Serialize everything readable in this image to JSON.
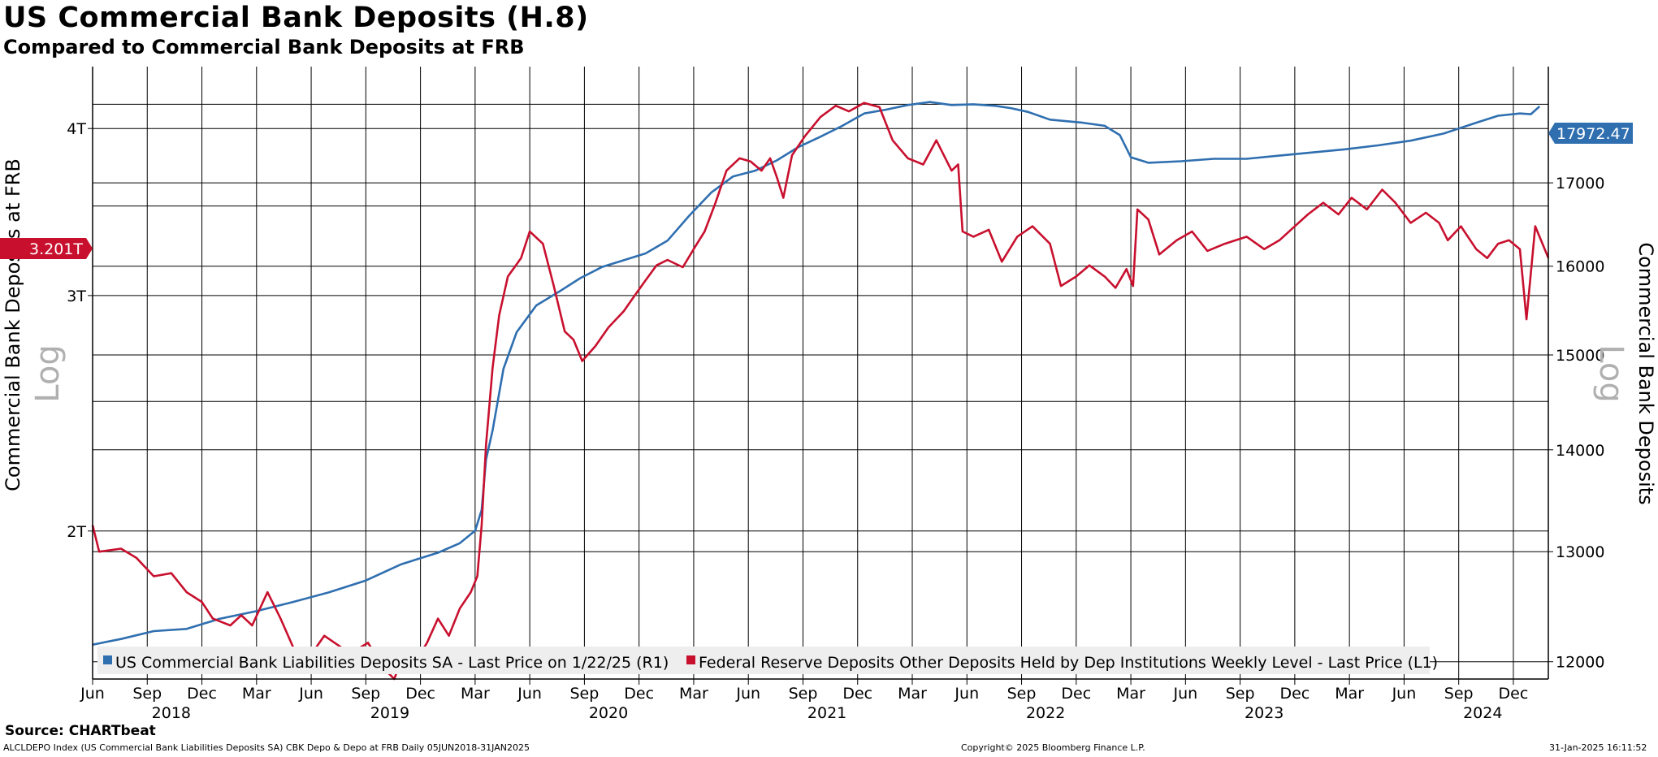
{
  "header": {
    "title": "US Commercial Bank Deposits (H.8)",
    "subtitle": "Compared to Commercial Bank Deposits at FRB"
  },
  "footer": {
    "source": "Source: CHARTbeat",
    "left": "ALCLDEPO Index (US Commercial Bank Liabilities Deposits SA) CBK Depo & Depo at FRB  Daily 05JUN2018-31JAN2025",
    "center": "Copyright© 2025 Bloomberg Finance L.P.",
    "right": "31-Jan-2025 16:11:52"
  },
  "colors": {
    "blue": "#2f6fb0",
    "red": "#c8102e",
    "grid": "#000000",
    "legend_bg": "#eeeeee",
    "watermark": "#b0b0b0"
  },
  "chart_data": {
    "type": "line",
    "x_axis": {
      "month_ticks": [
        "Jun",
        "Sep",
        "Dec",
        "Mar",
        "Jun",
        "Sep",
        "Dec",
        "Mar",
        "Jun",
        "Sep",
        "Dec",
        "Mar",
        "Jun",
        "Sep",
        "Dec",
        "Mar",
        "Jun",
        "Sep",
        "Dec",
        "Mar",
        "Jun",
        "Sep",
        "Dec",
        "Mar",
        "Jun",
        "Sep",
        "Dec"
      ],
      "tick_dates": [
        2018.42,
        2018.67,
        2018.92,
        2019.17,
        2019.42,
        2019.67,
        2019.92,
        2020.17,
        2020.42,
        2020.67,
        2020.92,
        2021.17,
        2021.42,
        2021.67,
        2021.92,
        2022.17,
        2022.42,
        2022.67,
        2022.92,
        2023.17,
        2023.42,
        2023.67,
        2023.92,
        2024.17,
        2024.42,
        2024.67,
        2024.92
      ],
      "year_labels": [
        "2018",
        "2019",
        "2020",
        "2021",
        "2022",
        "2023",
        "2024"
      ],
      "year_positions": [
        2018.78,
        2019.78,
        2020.78,
        2021.78,
        2022.78,
        2023.78,
        2024.78
      ],
      "range": [
        2018.42,
        2025.08
      ]
    },
    "left_axis": {
      "label": "Commercial Bank Deposits at FRB",
      "scale": "Log",
      "ticks": [
        "2T",
        "3T",
        "4T"
      ],
      "tick_values": [
        2.0,
        3.0,
        4.0
      ],
      "extra_grid_values": [
        2.5,
        3.5
      ],
      "range": [
        1.55,
        4.45
      ],
      "last_value_label": "3.201T",
      "last_value": 3.201
    },
    "right_axis": {
      "label": "Commercial Bank Deposits",
      "scale": "Log",
      "ticks": [
        "12000",
        "13000",
        "14000",
        "15000",
        "16000",
        "17000"
      ],
      "tick_values": [
        12000,
        13000,
        14000,
        15000,
        16000,
        17000
      ],
      "extra_grid_values": [
        18000
      ],
      "range": [
        11850,
        18500
      ],
      "last_value_label": "17972.47",
      "last_value": 17972.47
    },
    "series": [
      {
        "name": "US Commercial Bank Liabilities Deposits SA - Last Price on 1/22/25 (R1)",
        "axis": "right",
        "color": "#2f6fb0",
        "points": [
          [
            2018.42,
            12150
          ],
          [
            2018.55,
            12200
          ],
          [
            2018.7,
            12270
          ],
          [
            2018.85,
            12290
          ],
          [
            2019.0,
            12380
          ],
          [
            2019.17,
            12450
          ],
          [
            2019.33,
            12530
          ],
          [
            2019.5,
            12620
          ],
          [
            2019.67,
            12730
          ],
          [
            2019.83,
            12880
          ],
          [
            2020.0,
            12990
          ],
          [
            2020.1,
            13080
          ],
          [
            2020.17,
            13200
          ],
          [
            2020.2,
            13400
          ],
          [
            2020.22,
            13900
          ],
          [
            2020.25,
            14200
          ],
          [
            2020.3,
            14850
          ],
          [
            2020.36,
            15250
          ],
          [
            2020.45,
            15550
          ],
          [
            2020.55,
            15700
          ],
          [
            2020.65,
            15860
          ],
          [
            2020.75,
            15990
          ],
          [
            2020.85,
            16070
          ],
          [
            2020.95,
            16150
          ],
          [
            2021.05,
            16300
          ],
          [
            2021.15,
            16600
          ],
          [
            2021.25,
            16880
          ],
          [
            2021.35,
            17080
          ],
          [
            2021.45,
            17150
          ],
          [
            2021.55,
            17280
          ],
          [
            2021.65,
            17450
          ],
          [
            2021.75,
            17580
          ],
          [
            2021.85,
            17720
          ],
          [
            2021.95,
            17880
          ],
          [
            2022.05,
            17930
          ],
          [
            2022.15,
            17990
          ],
          [
            2022.25,
            18030
          ],
          [
            2022.35,
            17990
          ],
          [
            2022.45,
            18000
          ],
          [
            2022.55,
            17980
          ],
          [
            2022.62,
            17950
          ],
          [
            2022.7,
            17900
          ],
          [
            2022.8,
            17800
          ],
          [
            2022.95,
            17760
          ],
          [
            2023.05,
            17720
          ],
          [
            2023.12,
            17600
          ],
          [
            2023.17,
            17320
          ],
          [
            2023.25,
            17250
          ],
          [
            2023.4,
            17270
          ],
          [
            2023.55,
            17300
          ],
          [
            2023.7,
            17300
          ],
          [
            2023.85,
            17340
          ],
          [
            2024.0,
            17380
          ],
          [
            2024.15,
            17420
          ],
          [
            2024.3,
            17470
          ],
          [
            2024.45,
            17530
          ],
          [
            2024.6,
            17620
          ],
          [
            2024.75,
            17760
          ],
          [
            2024.85,
            17850
          ],
          [
            2024.95,
            17880
          ],
          [
            2025.0,
            17870
          ],
          [
            2025.04,
            17972.47
          ]
        ]
      },
      {
        "name": "Federal Reserve Deposits Other Deposits Held by Dep Institutions Weekly Level - Last Price (L1)",
        "axis": "left",
        "color": "#c8102e",
        "points": [
          [
            2018.42,
            2.02
          ],
          [
            2018.45,
            1.93
          ],
          [
            2018.55,
            1.94
          ],
          [
            2018.62,
            1.91
          ],
          [
            2018.7,
            1.85
          ],
          [
            2018.78,
            1.86
          ],
          [
            2018.85,
            1.8
          ],
          [
            2018.92,
            1.77
          ],
          [
            2018.97,
            1.72
          ],
          [
            2019.05,
            1.7
          ],
          [
            2019.1,
            1.73
          ],
          [
            2019.15,
            1.7
          ],
          [
            2019.22,
            1.8
          ],
          [
            2019.28,
            1.72
          ],
          [
            2019.35,
            1.62
          ],
          [
            2019.4,
            1.6
          ],
          [
            2019.48,
            1.67
          ],
          [
            2019.55,
            1.64
          ],
          [
            2019.6,
            1.62
          ],
          [
            2019.68,
            1.65
          ],
          [
            2019.75,
            1.58
          ],
          [
            2019.8,
            1.55
          ],
          [
            2019.85,
            1.63
          ],
          [
            2019.9,
            1.6
          ],
          [
            2019.95,
            1.65
          ],
          [
            2020.0,
            1.72
          ],
          [
            2020.05,
            1.67
          ],
          [
            2020.1,
            1.75
          ],
          [
            2020.15,
            1.8
          ],
          [
            2020.18,
            1.85
          ],
          [
            2020.2,
            2.02
          ],
          [
            2020.22,
            2.32
          ],
          [
            2020.25,
            2.65
          ],
          [
            2020.28,
            2.9
          ],
          [
            2020.32,
            3.1
          ],
          [
            2020.38,
            3.2
          ],
          [
            2020.42,
            3.35
          ],
          [
            2020.48,
            3.28
          ],
          [
            2020.53,
            3.05
          ],
          [
            2020.58,
            2.82
          ],
          [
            2020.62,
            2.78
          ],
          [
            2020.66,
            2.68
          ],
          [
            2020.72,
            2.75
          ],
          [
            2020.78,
            2.84
          ],
          [
            2020.85,
            2.92
          ],
          [
            2020.9,
            3.0
          ],
          [
            2020.95,
            3.08
          ],
          [
            2021.0,
            3.16
          ],
          [
            2021.05,
            3.19
          ],
          [
            2021.12,
            3.15
          ],
          [
            2021.18,
            3.27
          ],
          [
            2021.22,
            3.35
          ],
          [
            2021.27,
            3.52
          ],
          [
            2021.32,
            3.72
          ],
          [
            2021.38,
            3.8
          ],
          [
            2021.43,
            3.78
          ],
          [
            2021.48,
            3.72
          ],
          [
            2021.52,
            3.8
          ],
          [
            2021.55,
            3.68
          ],
          [
            2021.58,
            3.55
          ],
          [
            2021.62,
            3.82
          ],
          [
            2021.68,
            3.95
          ],
          [
            2021.75,
            4.08
          ],
          [
            2021.82,
            4.16
          ],
          [
            2021.88,
            4.12
          ],
          [
            2021.95,
            4.18
          ],
          [
            2022.02,
            4.15
          ],
          [
            2022.08,
            3.92
          ],
          [
            2022.15,
            3.8
          ],
          [
            2022.22,
            3.76
          ],
          [
            2022.28,
            3.92
          ],
          [
            2022.35,
            3.72
          ],
          [
            2022.38,
            3.76
          ],
          [
            2022.4,
            3.35
          ],
          [
            2022.45,
            3.32
          ],
          [
            2022.52,
            3.36
          ],
          [
            2022.58,
            3.18
          ],
          [
            2022.65,
            3.32
          ],
          [
            2022.72,
            3.38
          ],
          [
            2022.8,
            3.28
          ],
          [
            2022.85,
            3.05
          ],
          [
            2022.92,
            3.1
          ],
          [
            2022.98,
            3.16
          ],
          [
            2023.05,
            3.1
          ],
          [
            2023.1,
            3.04
          ],
          [
            2023.15,
            3.14
          ],
          [
            2023.18,
            3.05
          ],
          [
            2023.2,
            3.48
          ],
          [
            2023.25,
            3.42
          ],
          [
            2023.3,
            3.22
          ],
          [
            2023.38,
            3.3
          ],
          [
            2023.45,
            3.35
          ],
          [
            2023.52,
            3.24
          ],
          [
            2023.6,
            3.28
          ],
          [
            2023.7,
            3.32
          ],
          [
            2023.78,
            3.25
          ],
          [
            2023.85,
            3.3
          ],
          [
            2023.92,
            3.38
          ],
          [
            2023.98,
            3.45
          ],
          [
            2024.05,
            3.52
          ],
          [
            2024.12,
            3.45
          ],
          [
            2024.18,
            3.55
          ],
          [
            2024.25,
            3.48
          ],
          [
            2024.32,
            3.6
          ],
          [
            2024.38,
            3.52
          ],
          [
            2024.45,
            3.4
          ],
          [
            2024.52,
            3.46
          ],
          [
            2024.58,
            3.4
          ],
          [
            2024.62,
            3.3
          ],
          [
            2024.68,
            3.38
          ],
          [
            2024.75,
            3.25
          ],
          [
            2024.8,
            3.2
          ],
          [
            2024.85,
            3.28
          ],
          [
            2024.9,
            3.3
          ],
          [
            2024.95,
            3.25
          ],
          [
            2024.98,
            2.88
          ],
          [
            2025.02,
            3.38
          ],
          [
            2025.06,
            3.26
          ],
          [
            2025.08,
            3.201
          ]
        ]
      }
    ]
  }
}
